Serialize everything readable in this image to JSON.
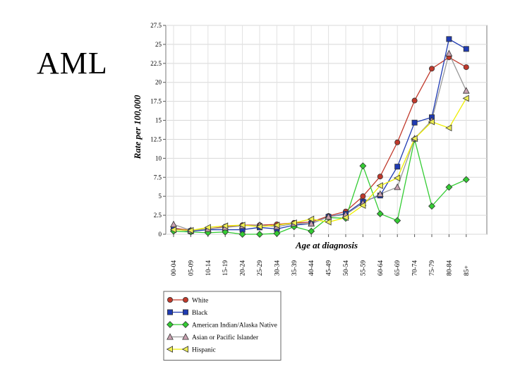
{
  "slide": {
    "title": "AML"
  },
  "chart_data": {
    "type": "line",
    "title": "",
    "xlabel": "Age at diagnosis",
    "ylabel": "Rate per 100,000",
    "ylim": [
      0,
      27.5
    ],
    "yticks": [
      "0",
      "2.5",
      "5",
      "7.5",
      "10",
      "12.5",
      "15",
      "17.5",
      "20",
      "22.5",
      "25",
      "27.5"
    ],
    "grid": true,
    "legend_position": "bottom",
    "categories": [
      "00-04",
      "05-09",
      "10-14",
      "15-19",
      "20-24",
      "25-29",
      "30-34",
      "35-39",
      "40-44",
      "45-49",
      "50-54",
      "55-59",
      "60-64",
      "65-69",
      "70-74",
      "75-79",
      "80-84",
      "85+"
    ],
    "series": [
      {
        "name": "White",
        "line_color": "#c0392b",
        "marker": "circle",
        "marker_fill": "#c0392b",
        "values": [
          0.8,
          0.5,
          0.7,
          1.0,
          1.2,
          1.2,
          1.3,
          1.5,
          1.6,
          2.4,
          3.0,
          5.0,
          7.6,
          12.1,
          17.6,
          21.8,
          23.3,
          22.0
        ]
      },
      {
        "name": "Black",
        "line_color": "#1f3bb3",
        "marker": "square",
        "marker_fill": "#1f3bb3",
        "values": [
          0.7,
          0.4,
          0.6,
          0.6,
          0.6,
          0.9,
          0.7,
          1.2,
          1.4,
          2.3,
          2.7,
          4.3,
          5.1,
          8.9,
          14.7,
          15.4,
          25.7,
          24.4
        ]
      },
      {
        "name": "American Indian/Alaska Native",
        "line_color": "#33cc33",
        "marker": "diamond",
        "marker_fill": "#33cc33",
        "values": [
          0.4,
          0.3,
          0.2,
          0.3,
          0.0,
          0.0,
          0.1,
          1.0,
          0.4,
          2.2,
          2.1,
          9.0,
          2.7,
          1.8,
          12.5,
          3.7,
          6.2,
          7.2
        ]
      },
      {
        "name": "Asian or Pacific Islander",
        "line_color": "#999999",
        "marker": "triangle-up",
        "marker_fill": "#c8a0b0",
        "values": [
          1.3,
          0.5,
          0.7,
          0.9,
          1.1,
          1.2,
          1.0,
          1.4,
          1.4,
          2.3,
          2.6,
          4.1,
          5.3,
          6.2,
          12.6,
          15.0,
          23.8,
          18.9
        ]
      },
      {
        "name": "Hispanic",
        "line_color": "#eeee00",
        "marker": "triangle-left",
        "marker_fill": "#eeee55",
        "values": [
          0.6,
          0.5,
          0.9,
          1.1,
          1.2,
          1.0,
          1.2,
          1.5,
          2.0,
          1.6,
          2.2,
          3.8,
          6.4,
          7.4,
          12.6,
          14.8,
          14.0,
          17.9
        ]
      }
    ]
  }
}
